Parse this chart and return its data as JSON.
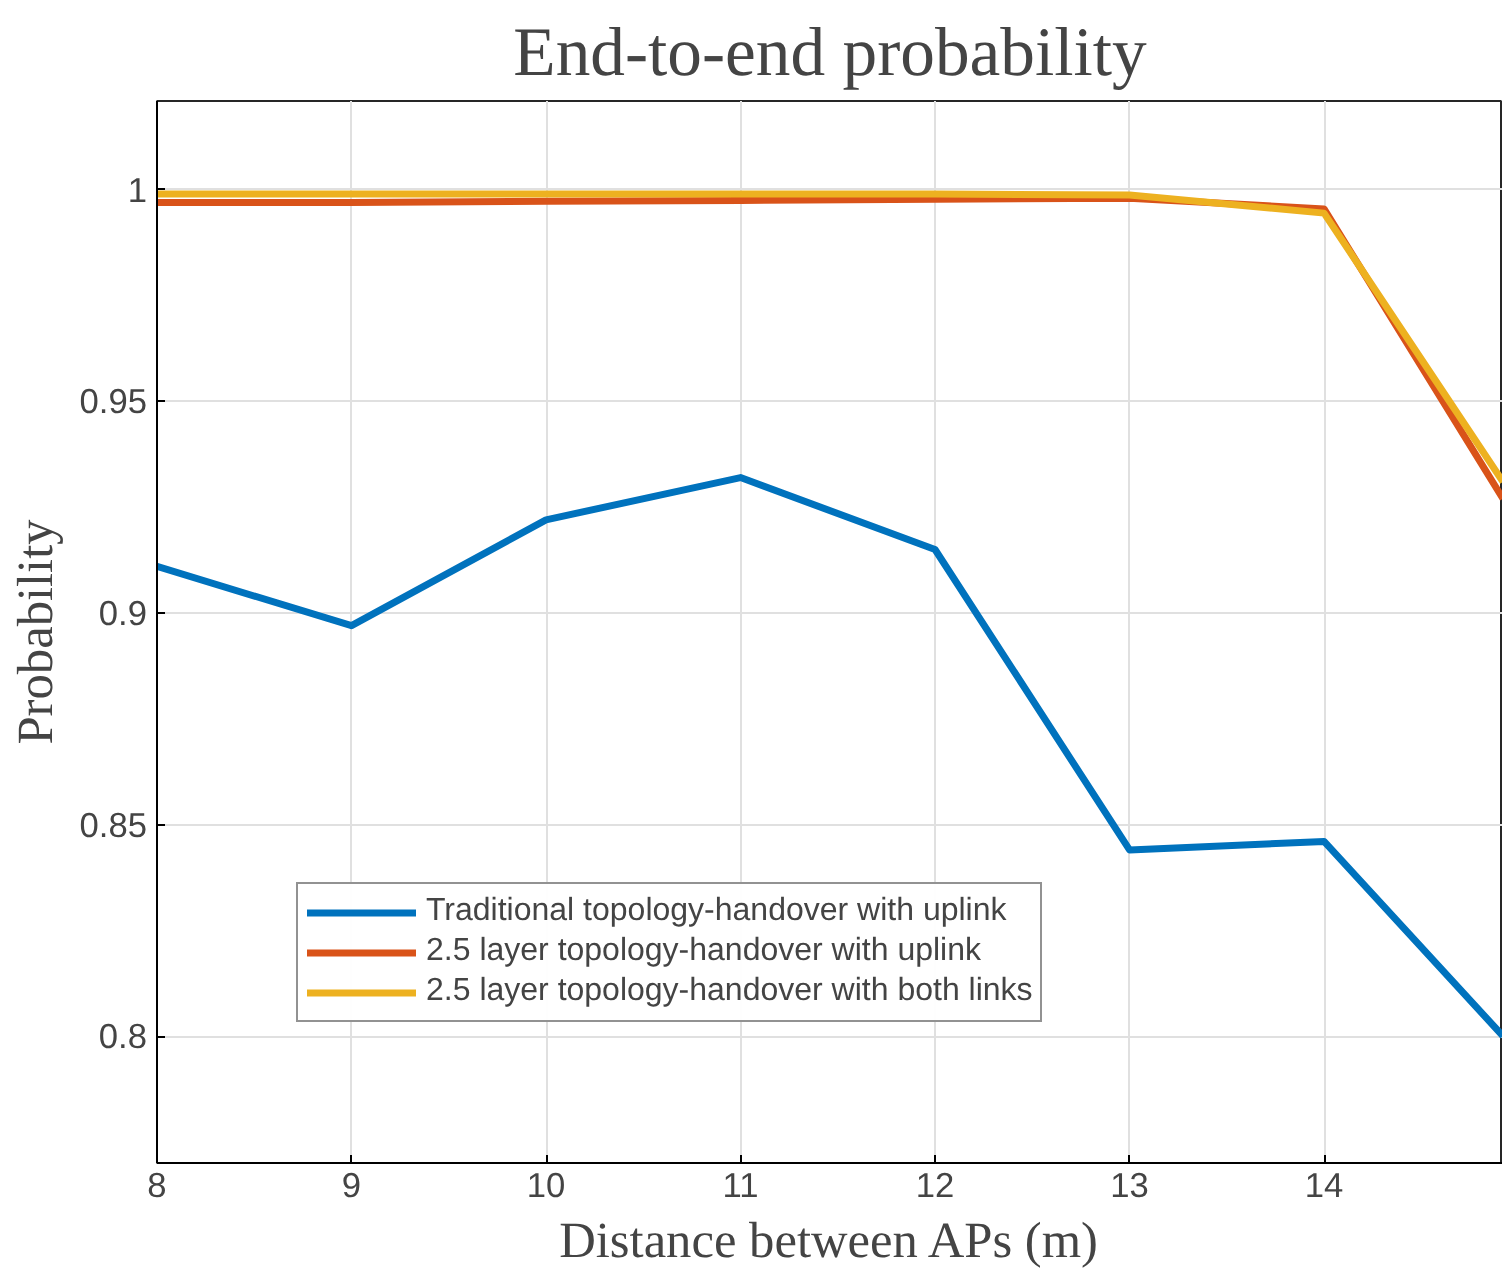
{
  "chart_data": {
    "type": "line",
    "title": "End-to-end probability",
    "xlabel": "Distance between APs (m)",
    "ylabel": "Probability",
    "x": [
      8,
      9,
      10,
      11,
      12,
      13,
      14,
      14.92
    ],
    "series": [
      {
        "name": "Traditional topology-handover with uplink",
        "color": "#0072bd",
        "values": [
          0.911,
          0.897,
          0.922,
          0.932,
          0.915,
          0.844,
          0.846,
          0.8
        ]
      },
      {
        "name": "2.5 layer topology-handover with uplink",
        "color": "#d95319",
        "values": [
          0.997,
          0.997,
          0.9973,
          0.9975,
          0.9978,
          0.998,
          0.9955,
          0.927
        ]
      },
      {
        "name": "2.5 layer topology-handover with both links",
        "color": "#edb120",
        "values": [
          0.999,
          0.999,
          0.999,
          0.999,
          0.999,
          0.9988,
          0.9945,
          0.931
        ]
      }
    ],
    "xlim": [
      8,
      14.92
    ],
    "ylim": [
      0.77,
      1.021
    ],
    "xticks": [
      8,
      9,
      10,
      11,
      12,
      13,
      14
    ],
    "yticks": [
      0.8,
      0.85,
      0.9,
      0.95,
      {
        "value": 1,
        "label": "1"
      }
    ],
    "grid": true,
    "legend": "bottom left",
    "marker": "none",
    "line_style": "solid"
  }
}
